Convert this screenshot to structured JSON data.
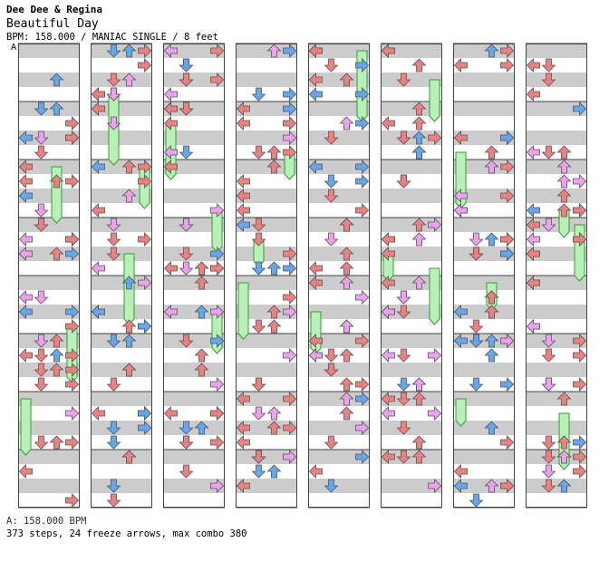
{
  "header": {
    "artist": "Dee Dee & Regina",
    "title": "Beautiful Day",
    "meta": "BPM: 158.000 / MANIAC SINGLE / 8 feet"
  },
  "bpm_marker": "A",
  "footer": {
    "bpm_line": "A: 158.000 BPM",
    "stats_line": "373 steps, 24 freeze arrows, max combo 380"
  },
  "colors": {
    "red": "#f08080",
    "blue": "#60a8f0",
    "pink": "#f0a0f0",
    "freeze": "#b8f0b8",
    "freeze_stroke": "#30a030",
    "stripe": "#cccccc"
  },
  "chart_data": {
    "type": "step-chart",
    "columns": 8,
    "measures_per_column": 8,
    "lanes": [
      "left",
      "down",
      "up",
      "right"
    ],
    "total_steps": 373,
    "freeze_arrows": 24,
    "max_combo": 380,
    "bpm": 158.0
  }
}
